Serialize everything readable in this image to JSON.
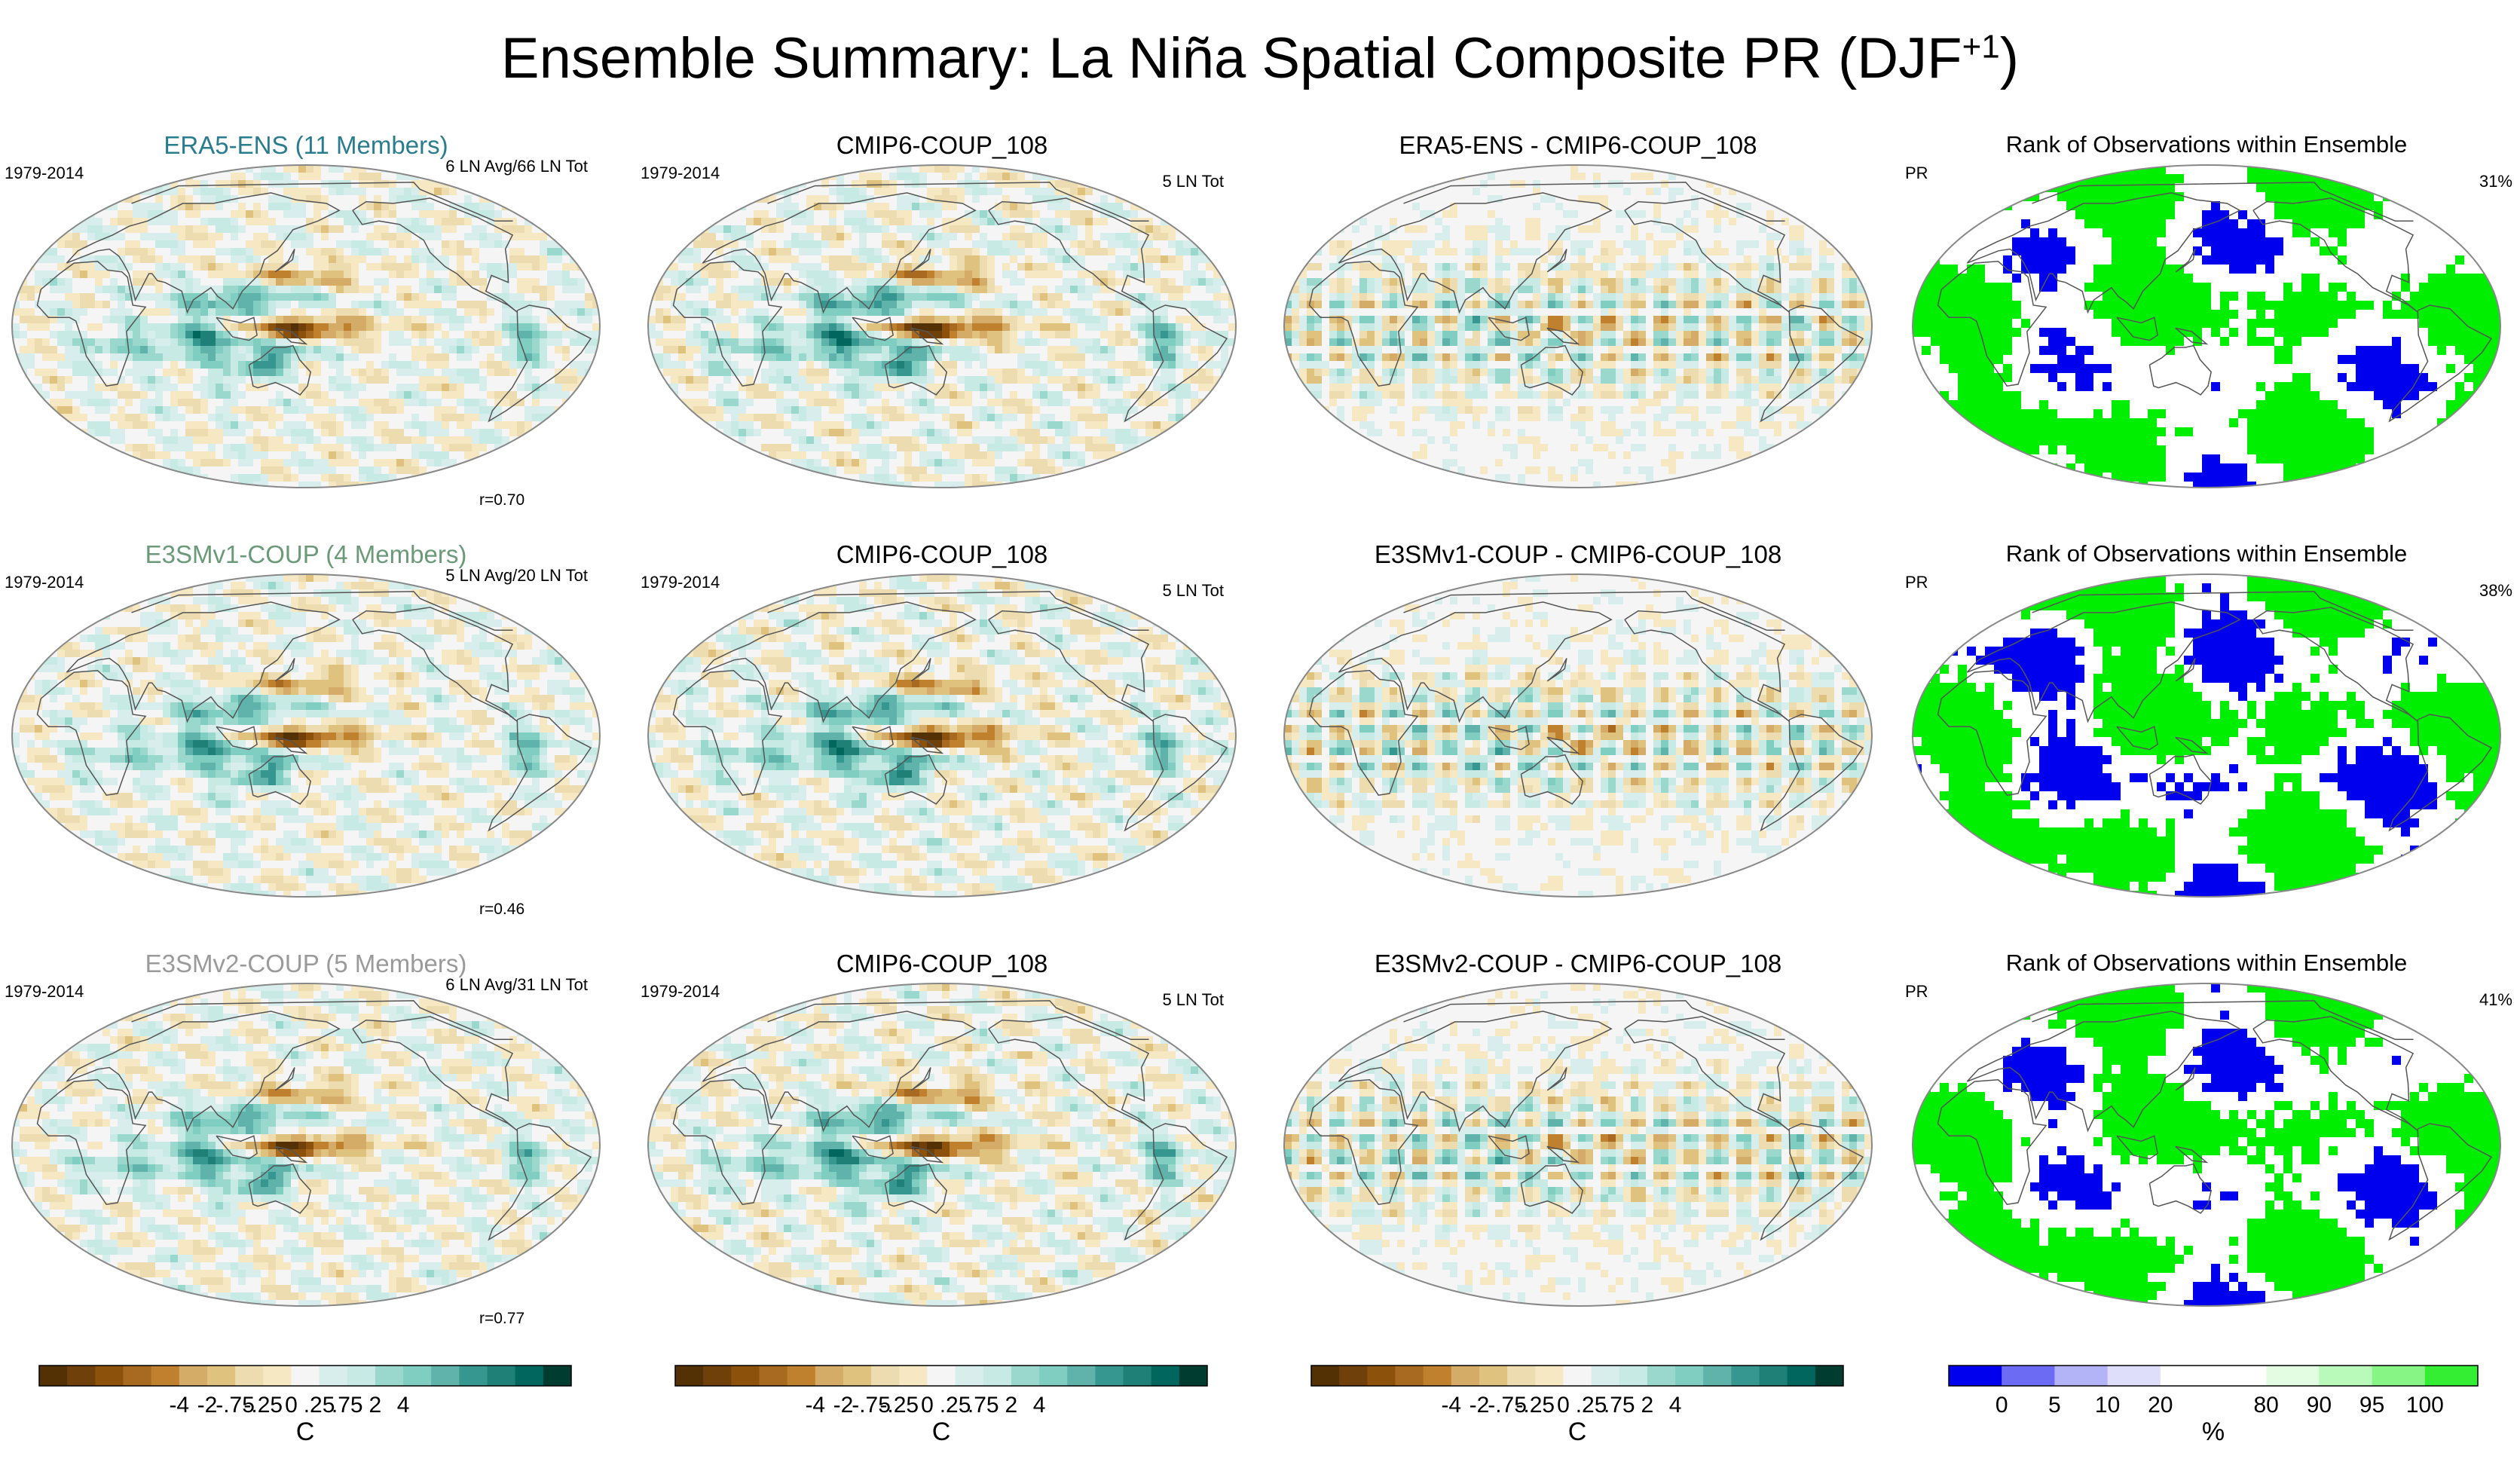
{
  "title": {
    "main": "Ensemble Summary: La Niña Spatial Composite PR (DJF",
    "sup": "+1",
    "close": ")"
  },
  "colors": {
    "diverging": [
      "#543005",
      "#6f4009",
      "#8c510a",
      "#a86a20",
      "#bf812d",
      "#d4ac68",
      "#dfc27d",
      "#ecdcb0",
      "#f6e8c3",
      "#f5f5f5",
      "#d8eeec",
      "#c7eae5",
      "#9ad8cd",
      "#80cdc1",
      "#5fb3aa",
      "#35978f",
      "#1e8077",
      "#01665e",
      "#003c30"
    ],
    "rank": [
      "#0000ee",
      "#6b6bf3",
      "#b3b3f7",
      "#dedefa",
      "#ffffff",
      "#ffffff",
      "#e3fde3",
      "#b9f9b9",
      "#86f586",
      "#33ee33"
    ],
    "ocean": "#f7f4ef",
    "title_era5": "#2a7d8e",
    "title_e3smv1": "#6a9a78",
    "title_e3smv2": "#9a9a9a",
    "rank_blue": "#0000ee",
    "rank_green": "#00ee00"
  },
  "rows": [
    {
      "p1": {
        "title": "ERA5-ENS (11 Members)",
        "left": "1979-2014",
        "right": "6 LN Avg/66 LN Tot",
        "corr": "r=0.70",
        "seed": 11,
        "mode": "obs"
      },
      "p2": {
        "title": "CMIP6-COUP_108",
        "left": "1979-2014",
        "right": "5 LN Tot",
        "seed": 21,
        "mode": "ens"
      },
      "p3": {
        "title": "ERA5-ENS - CMIP6-COUP_108",
        "seed": 31,
        "mode": "diff"
      },
      "p4": {
        "title": "Rank of Observations within Ensemble",
        "left": "PR",
        "right": "31%",
        "seed": 41,
        "blue_frac": 0.31
      }
    },
    {
      "p1": {
        "title": "E3SMv1-COUP (4 Members)",
        "left": "1979-2014",
        "right": "5 LN Avg/20 LN Tot",
        "corr": "r=0.46",
        "seed": 12,
        "mode": "obs"
      },
      "p2": {
        "title": "CMIP6-COUP_108",
        "left": "1979-2014",
        "right": "5 LN Tot",
        "seed": 22,
        "mode": "ens"
      },
      "p3": {
        "title": "E3SMv1-COUP - CMIP6-COUP_108",
        "seed": 32,
        "mode": "diff"
      },
      "p4": {
        "title": "Rank of Observations within Ensemble",
        "left": "PR",
        "right": "38%",
        "seed": 42,
        "blue_frac": 0.22
      }
    },
    {
      "p1": {
        "title": "E3SMv2-COUP (5 Members)",
        "left": "1979-2014",
        "right": "6 LN Avg/31 LN Tot",
        "corr": "r=0.77",
        "seed": 13,
        "mode": "obs"
      },
      "p2": {
        "title": "CMIP6-COUP_108",
        "left": "1979-2014",
        "right": "5 LN Tot",
        "seed": 23,
        "mode": "ens"
      },
      "p3": {
        "title": "E3SMv2-COUP - CMIP6-COUP_108",
        "seed": 33,
        "mode": "diff"
      },
      "p4": {
        "title": "Rank of Observations within Ensemble",
        "left": "PR",
        "right": "41%",
        "seed": 43,
        "blue_frac": 0.28
      }
    }
  ],
  "colorbars": {
    "diverging": {
      "labels": [
        "-4",
        "-2",
        "-.75",
        "-.25",
        "0",
        ".25",
        ".75",
        "2",
        "4"
      ],
      "unit": "C"
    },
    "rank": {
      "labels": [
        "0",
        "5",
        "10",
        "20",
        "80",
        "90",
        "95",
        "100"
      ],
      "unit": "%"
    }
  },
  "chart_data": [
    {
      "type": "heatmap",
      "title": "Ensemble Summary: La Niña Spatial Composite PR (DJF+1)",
      "panel_grid": "3 rows x 4 columns",
      "projection": "Robinson (global)",
      "diverging_levels": [
        -4,
        -2,
        -0.75,
        -0.25,
        0,
        0.25,
        0.75,
        2,
        4
      ],
      "unit": "C",
      "panels": [
        {
          "row": 1,
          "col": 1,
          "title": "ERA5-ENS (11 Members)",
          "period": "1979-2014",
          "events": "6 LN Avg/66 LN Tot",
          "pattern_correlation": 0.7
        },
        {
          "row": 1,
          "col": 2,
          "title": "CMIP6-COUP_108",
          "period": "1979-2014",
          "events": "5 LN Tot"
        },
        {
          "row": 1,
          "col": 3,
          "title": "ERA5-ENS - CMIP6-COUP_108"
        },
        {
          "row": 2,
          "col": 1,
          "title": "E3SMv1-COUP (4 Members)",
          "period": "1979-2014",
          "events": "5 LN Avg/20 LN Tot",
          "pattern_correlation": 0.46
        },
        {
          "row": 2,
          "col": 2,
          "title": "CMIP6-COUP_108",
          "period": "1979-2014",
          "events": "5 LN Tot"
        },
        {
          "row": 2,
          "col": 3,
          "title": "E3SMv1-COUP - CMIP6-COUP_108"
        },
        {
          "row": 3,
          "col": 1,
          "title": "E3SMv2-COUP (5 Members)",
          "period": "1979-2014",
          "events": "6 LN Avg/31 LN Tot",
          "pattern_correlation": 0.77
        },
        {
          "row": 3,
          "col": 2,
          "title": "CMIP6-COUP_108",
          "period": "1979-2014",
          "events": "5 LN Tot"
        },
        {
          "row": 3,
          "col": 3,
          "title": "E3SMv2-COUP - CMIP6-COUP_108"
        }
      ]
    },
    {
      "type": "heatmap",
      "title": "Rank of Observations within Ensemble",
      "variable": "PR",
      "rank_levels_percent": [
        0,
        5,
        10,
        20,
        80,
        90,
        95,
        100
      ],
      "unit": "%",
      "panels": [
        {
          "row": 1,
          "col": 4,
          "percent_outside": 31
        },
        {
          "row": 2,
          "col": 4,
          "percent_outside": 38
        },
        {
          "row": 3,
          "col": 4,
          "percent_outside": 41
        }
      ]
    }
  ]
}
